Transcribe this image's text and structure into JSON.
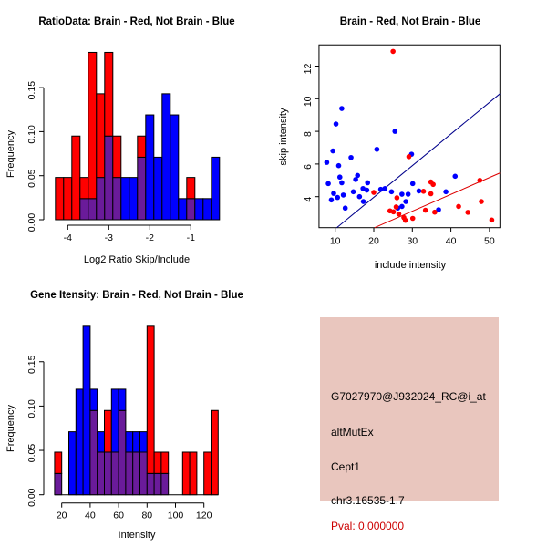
{
  "figure": {
    "background": "#ffffff"
  },
  "colors": {
    "brain_red": "#FF0000",
    "not_brain_blue": "#0000FF",
    "overlap_purple": "#6A1B9A",
    "fit_line_blue": "#00008B",
    "fit_line_red": "#DD0000",
    "axis_black": "#000000",
    "info_card_bg": "#E9C6BE",
    "pval_red": "#CC0000"
  },
  "chart_data": [
    {
      "id": "ratio_hist",
      "type": "bar",
      "subtype": "overlaid-histogram",
      "title": "RatioData: Brain - Red, Not Brain - Blue",
      "xlabel": "Log2 Ratio Skip/Include",
      "ylabel": "Frequency",
      "bin_start": -4.3,
      "bin_width": 0.2,
      "xticks": [
        -4,
        -3,
        -2,
        -1
      ],
      "yticks": [
        "0.00",
        "0.05",
        "0.10",
        "0.15"
      ],
      "xlim": [
        -4.45,
        -0.15
      ],
      "ylim": [
        0,
        0.19
      ],
      "grid": false,
      "series": [
        {
          "name": "Brain (red)",
          "color": "#FF0000",
          "values": [
            0.048,
            0.048,
            0.095,
            0.048,
            0.19,
            0.143,
            0.19,
            0.095,
            0,
            0,
            0.095,
            0,
            0,
            0,
            0,
            0,
            0.048,
            0,
            0,
            0
          ]
        },
        {
          "name": "Not Brain (blue)",
          "color": "#0000FF",
          "values": [
            0,
            0,
            0,
            0.024,
            0.024,
            0.048,
            0.095,
            0.048,
            0.048,
            0.048,
            0.071,
            0.119,
            0.071,
            0.143,
            0.119,
            0.024,
            0.024,
            0.024,
            0.024,
            0.071
          ]
        }
      ]
    },
    {
      "id": "intensity_scatter",
      "type": "scatter",
      "title": "Brain - Red, Not Brain - Blue",
      "xlabel": "include intensity",
      "ylabel": "skip intensity",
      "xticks": [
        10,
        20,
        30,
        40,
        50
      ],
      "yticks": [
        "4",
        "6",
        "8",
        "10",
        "12"
      ],
      "xlim": [
        5.8,
        52.7
      ],
      "ylim": [
        2.1,
        13.3
      ],
      "grid": false,
      "series": [
        {
          "name": "Not Brain (blue)",
          "color": "#0000FF",
          "points": [
            [
              11.7,
              9.4
            ],
            [
              10.2,
              8.45
            ],
            [
              25.5,
              8.0
            ],
            [
              20.8,
              6.9
            ],
            [
              9.4,
              6.8
            ],
            [
              29.8,
              6.6
            ],
            [
              14.1,
              6.4
            ],
            [
              7.8,
              6.1
            ],
            [
              10.9,
              5.9
            ],
            [
              15.8,
              5.3
            ],
            [
              11.2,
              5.2
            ],
            [
              15.3,
              5.05
            ],
            [
              18.4,
              4.85
            ],
            [
              11.7,
              4.85
            ],
            [
              8.2,
              4.8
            ],
            [
              30.1,
              4.8
            ],
            [
              41.1,
              5.25
            ],
            [
              17.2,
              4.5
            ],
            [
              18.2,
              4.4
            ],
            [
              21.8,
              4.45
            ],
            [
              22.9,
              4.5
            ],
            [
              14.7,
              4.3
            ],
            [
              24.6,
              4.3
            ],
            [
              31.7,
              4.35
            ],
            [
              12.1,
              4.1
            ],
            [
              9.6,
              4.2
            ],
            [
              16.3,
              4.0
            ],
            [
              10.6,
              3.95
            ],
            [
              9.0,
              3.8
            ],
            [
              17.3,
              3.7
            ],
            [
              27.3,
              4.15
            ],
            [
              28.9,
              4.15
            ],
            [
              28.3,
              3.7
            ],
            [
              27.3,
              3.4
            ],
            [
              26.2,
              3.3
            ],
            [
              12.6,
              3.3
            ],
            [
              36.8,
              3.2
            ],
            [
              38.7,
              4.3
            ]
          ]
        },
        {
          "name": "Brain (red)",
          "color": "#FF0000",
          "points": [
            [
              25.0,
              12.9
            ],
            [
              29.1,
              6.45
            ],
            [
              20.0,
              4.26
            ],
            [
              34.8,
              4.9
            ],
            [
              35.4,
              4.75
            ],
            [
              47.5,
              5.0
            ],
            [
              32.9,
              4.33
            ],
            [
              34.8,
              4.18
            ],
            [
              26.0,
              3.93
            ],
            [
              42.0,
              3.4
            ],
            [
              47.9,
              3.7
            ],
            [
              25.8,
              3.37
            ],
            [
              33.4,
              3.17
            ],
            [
              24.2,
              3.13
            ],
            [
              25.1,
              3.07
            ],
            [
              35.8,
              3.05
            ],
            [
              44.4,
              3.04
            ],
            [
              26.5,
              2.94
            ],
            [
              27.8,
              2.72
            ],
            [
              30.1,
              2.67
            ],
            [
              28.2,
              2.55
            ],
            [
              50.6,
              2.57
            ]
          ]
        }
      ],
      "lines": [
        {
          "name": "not-brain-fit",
          "color": "#00008B",
          "x": [
            10.4,
            52.7
          ],
          "y": [
            2.1,
            10.3
          ]
        },
        {
          "name": "brain-fit",
          "color": "#DD0000",
          "x": [
            20.2,
            52.7
          ],
          "y": [
            2.1,
            5.45
          ]
        }
      ]
    },
    {
      "id": "gene_hist",
      "type": "bar",
      "subtype": "overlaid-histogram",
      "title": "Gene Itensity: Brain - Red, Not Brain - Blue",
      "xlabel": "Intensity",
      "ylabel": "Frequency",
      "bin_start": 15,
      "bin_width": 5,
      "xticks": [
        20,
        40,
        60,
        80,
        100,
        120
      ],
      "yticks": [
        "0.00",
        "0.05",
        "0.10",
        "0.15"
      ],
      "xlim": [
        13,
        132
      ],
      "ylim": [
        0,
        0.19
      ],
      "grid": false,
      "series": [
        {
          "name": "Brain (red)",
          "color": "#FF0000",
          "values": [
            0.048,
            0,
            0,
            0,
            0,
            0.095,
            0.048,
            0.095,
            0.048,
            0.095,
            0.048,
            0.048,
            0.048,
            0.19,
            0.048,
            0.048,
            0,
            0,
            0.048,
            0.048,
            0,
            0.048,
            0.095
          ]
        },
        {
          "name": "Not Brain (blue)",
          "color": "#0000FF",
          "values": [
            0.024,
            0,
            0.071,
            0.119,
            0.19,
            0.119,
            0.071,
            0.048,
            0.119,
            0.119,
            0.071,
            0.071,
            0.071,
            0.024,
            0.024,
            0.024,
            0,
            0,
            0,
            0,
            0,
            0,
            0
          ]
        }
      ]
    }
  ],
  "info_card": {
    "probe_id": "G7027970@J932024_RC@i_at",
    "event_type": "altMutEx",
    "gene": "Cept1",
    "locus": "chr3.16535-1.7",
    "pval": "Pval: 0.000000"
  }
}
